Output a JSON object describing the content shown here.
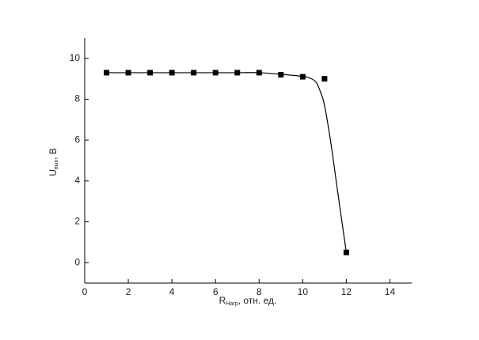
{
  "chart_data": {
    "type": "scatter",
    "x_label": {
      "main": "R",
      "sub": "Нагр",
      "rest": ", отн. ед."
    },
    "y_label": {
      "main": "U",
      "sub": "вых",
      "rest": ", В"
    },
    "x": [
      1,
      2,
      3,
      4,
      5,
      6,
      7,
      8,
      9,
      10,
      11,
      12
    ],
    "values": [
      9.3,
      9.3,
      9.3,
      9.3,
      9.3,
      9.3,
      9.3,
      9.3,
      9.2,
      9.1,
      9.0,
      0.5
    ],
    "color": "#000000",
    "fit": {
      "x": [
        1,
        2,
        3,
        4,
        5,
        6,
        7,
        8,
        9,
        10,
        10.3,
        10.6,
        10.8,
        11,
        11.3,
        11.6,
        12
      ],
      "values": [
        9.3,
        9.3,
        9.3,
        9.3,
        9.3,
        9.3,
        9.3,
        9.3,
        9.22,
        9.12,
        9.05,
        8.85,
        8.4,
        7.7,
        5.8,
        3.5,
        0.5
      ]
    },
    "xlim": [
      0,
      15
    ],
    "ylim": [
      -1,
      11
    ],
    "xticks": [
      0,
      2,
      4,
      6,
      8,
      10,
      12,
      14
    ],
    "yticks": [
      0,
      2,
      4,
      6,
      8,
      10
    ]
  }
}
